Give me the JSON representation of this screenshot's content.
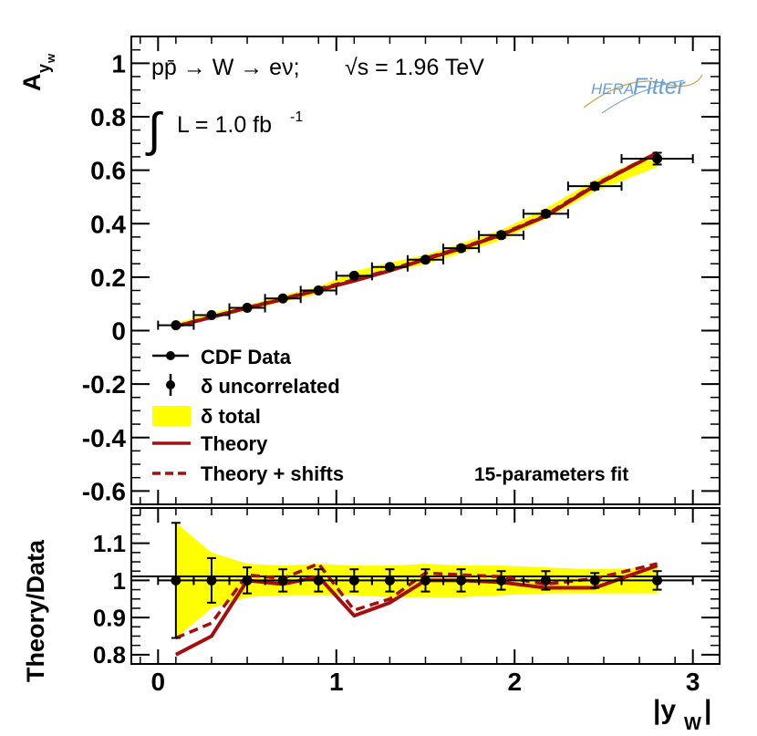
{
  "chart_data": [
    {
      "type": "scatter",
      "panel": "main",
      "ylabel_main": "A",
      "ylabel_sub": "y",
      "ylabel_subsub": "w",
      "ylim": [
        -0.65,
        1.1
      ],
      "yticks": [
        "1",
        "0.8",
        "0.6",
        "0.4",
        "0.2",
        "0",
        "-0.2",
        "-0.4",
        "-0.6"
      ],
      "ytick_values": [
        1,
        0.8,
        0.6,
        0.4,
        0.2,
        0,
        -0.2,
        -0.4,
        -0.6
      ],
      "annotation_process": "pp̄ → W → eν;",
      "annotation_sqrt": "√s = 1.96 TeV",
      "annotation_lumi": "L = 1.0 fb",
      "annotation_lumi_exp": "-1",
      "annotation_integral": "∫",
      "logo_hera": "HERA",
      "logo_fitter": "Fitter",
      "fit_label": "15-parameters fit",
      "legend": [
        {
          "label": "CDF Data",
          "kind": "marker-line"
        },
        {
          "label": "δ uncorrelated",
          "kind": "marker-errorbar"
        },
        {
          "label": "δ total",
          "kind": "band"
        },
        {
          "label": "Theory",
          "kind": "solid-line"
        },
        {
          "label": "Theory + shifts",
          "kind": "dashed-line"
        }
      ],
      "x": [
        0.1,
        0.3,
        0.5,
        0.7,
        0.9,
        1.1,
        1.3,
        1.5,
        1.7,
        1.925,
        2.175,
        2.45,
        2.8
      ],
      "xerr": [
        0.1,
        0.1,
        0.1,
        0.1,
        0.1,
        0.1,
        0.1,
        0.1,
        0.1,
        0.125,
        0.125,
        0.15,
        0.2
      ],
      "y": [
        0.02,
        0.058,
        0.085,
        0.12,
        0.15,
        0.205,
        0.238,
        0.265,
        0.308,
        0.357,
        0.437,
        0.54,
        0.643
      ],
      "yerr": [
        0.004,
        0.005,
        0.005,
        0.006,
        0.006,
        0.007,
        0.007,
        0.008,
        0.009,
        0.01,
        0.011,
        0.012,
        0.022
      ],
      "band_x": [
        0.1,
        0.3,
        0.5,
        0.7,
        0.9,
        1.1,
        1.3,
        1.5,
        1.7,
        1.925,
        2.175,
        2.45,
        2.8
      ],
      "band_low": [
        0.016,
        0.048,
        0.075,
        0.108,
        0.136,
        0.19,
        0.222,
        0.248,
        0.29,
        0.338,
        0.418,
        0.52,
        0.612
      ],
      "band_high": [
        0.028,
        0.066,
        0.095,
        0.132,
        0.164,
        0.222,
        0.255,
        0.283,
        0.327,
        0.377,
        0.458,
        0.563,
        0.668
      ],
      "theory": [
        0.016,
        0.05,
        0.085,
        0.117,
        0.152,
        0.186,
        0.224,
        0.267,
        0.307,
        0.358,
        0.428,
        0.542,
        0.665
      ],
      "theory_shifts": [
        0.017,
        0.052,
        0.086,
        0.119,
        0.156,
        0.19,
        0.227,
        0.271,
        0.31,
        0.361,
        0.432,
        0.546,
        0.666
      ]
    },
    {
      "type": "scatter",
      "panel": "ratio",
      "ylabel": "Theory/Data",
      "xlabel_main": "|y",
      "xlabel_sub": "W",
      "xlabel_end": "|",
      "xlim": [
        -0.15,
        3.15
      ],
      "ylim": [
        0.775,
        1.195
      ],
      "yticks": [
        "1.1",
        "1",
        "0.9",
        "0.8"
      ],
      "ytick_values": [
        1.1,
        1.0,
        0.9,
        0.8
      ],
      "xticks": [
        "0",
        "1",
        "2",
        "3"
      ],
      "xtick_values": [
        0,
        1,
        2,
        3
      ],
      "x": [
        0.1,
        0.3,
        0.5,
        0.7,
        0.9,
        1.1,
        1.3,
        1.5,
        1.7,
        1.925,
        2.175,
        2.45,
        2.8
      ],
      "xerr": [
        0.1,
        0.1,
        0.1,
        0.1,
        0.1,
        0.1,
        0.1,
        0.1,
        0.1,
        0.125,
        0.125,
        0.15,
        0.2
      ],
      "y": [
        1,
        1,
        1,
        1,
        1,
        1,
        1,
        1,
        1,
        1,
        1,
        1,
        1
      ],
      "yerr": [
        0.155,
        0.06,
        0.035,
        0.03,
        0.03,
        0.03,
        0.03,
        0.03,
        0.03,
        0.025,
        0.025,
        0.02,
        0.025
      ],
      "band_x": [
        0.1,
        0.3,
        0.5,
        0.7,
        0.9,
        1.1,
        1.3,
        1.5,
        1.7,
        1.925,
        2.175,
        2.45,
        2.8
      ],
      "band_low": [
        0.845,
        0.925,
        0.955,
        0.96,
        0.96,
        0.96,
        0.955,
        0.955,
        0.955,
        0.96,
        0.965,
        0.965,
        0.965
      ],
      "band_high": [
        1.155,
        1.075,
        1.045,
        1.04,
        1.045,
        1.04,
        1.04,
        1.045,
        1.04,
        1.04,
        1.035,
        1.03,
        1.035
      ],
      "theory": [
        0.8,
        0.85,
        1.0,
        0.99,
        1.01,
        0.905,
        0.94,
        1.0,
        1.0,
        0.995,
        0.98,
        0.98,
        1.04
      ],
      "theory_shifts": [
        0.845,
        0.885,
        1.015,
        1.005,
        1.045,
        0.92,
        0.95,
        1.02,
        1.015,
        1.01,
        0.99,
        1.005,
        1.045
      ]
    }
  ]
}
